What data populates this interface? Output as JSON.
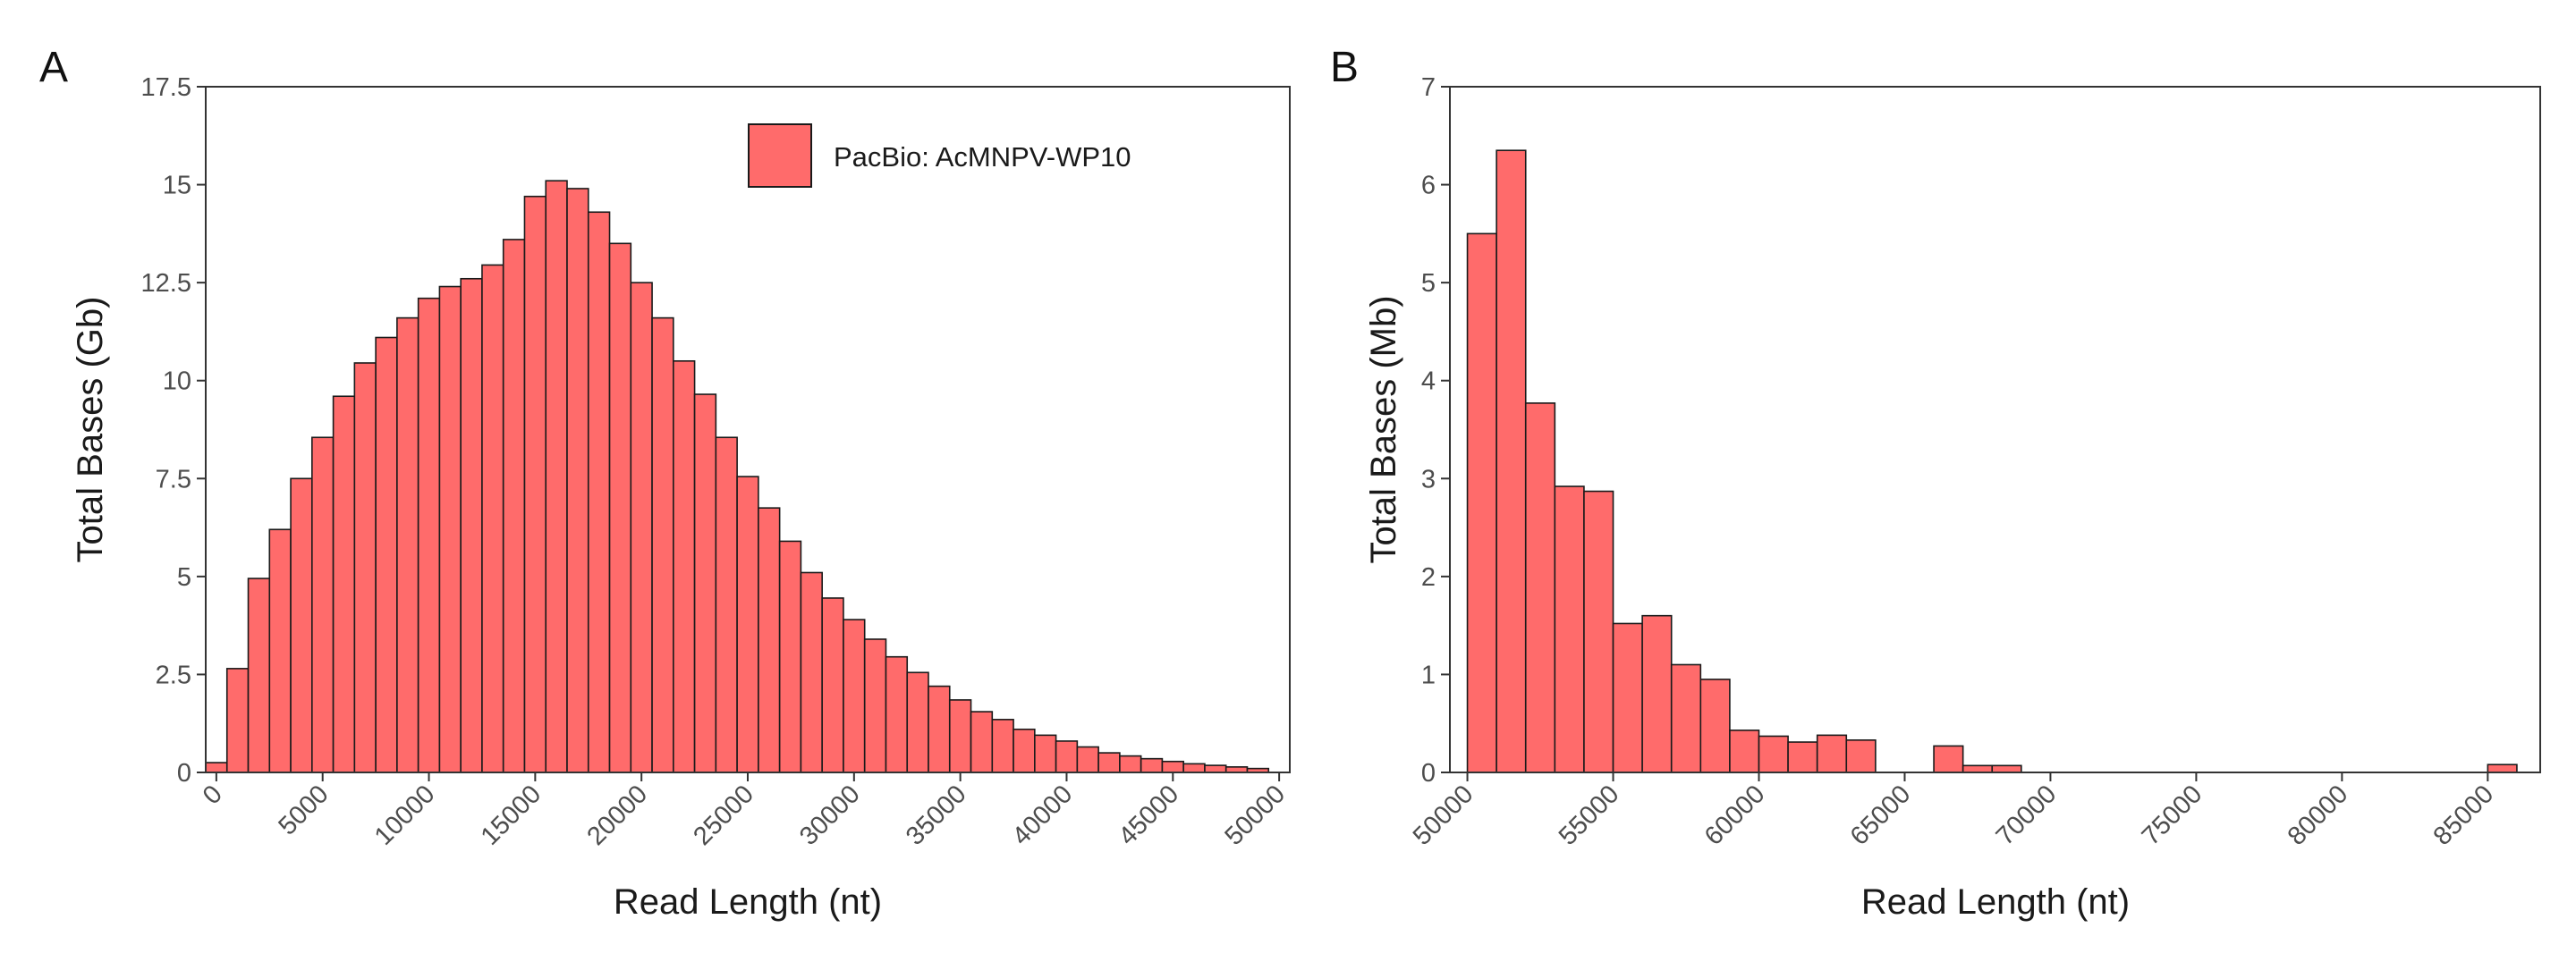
{
  "figure": {
    "panels": [
      "A",
      "B"
    ],
    "bar_fill": "#FF6B6B",
    "bar_stroke": "#1a1a1a"
  },
  "chart_data": [
    {
      "panel": "A",
      "type": "bar",
      "title": "",
      "xlabel": "Read Length (nt)",
      "ylabel": "Total Bases (Gb)",
      "legend": {
        "entries": [
          "PacBio: AcMNPV-WP10"
        ],
        "placement": "top-right"
      },
      "xlim": [
        -500,
        50500
      ],
      "ylim": [
        0,
        17.5
      ],
      "xticks": [
        0,
        5000,
        10000,
        15000,
        20000,
        25000,
        30000,
        35000,
        40000,
        45000,
        50000
      ],
      "xtick_labels": [
        "0",
        "5000",
        "10000",
        "15000",
        "20000",
        "25000",
        "30000",
        "35000",
        "40000",
        "45000",
        "50000"
      ],
      "yticks": [
        0,
        2.5,
        5,
        7.5,
        10,
        12.5,
        15,
        17.5
      ],
      "ytick_labels": [
        "0",
        "2.5",
        "5",
        "7.5",
        "10",
        "12.5",
        "15",
        "17.5"
      ],
      "grid": false,
      "bin_width": 1000,
      "x": [
        0,
        1000,
        2000,
        3000,
        4000,
        5000,
        6000,
        7000,
        8000,
        9000,
        10000,
        11000,
        12000,
        13000,
        14000,
        15000,
        16000,
        17000,
        18000,
        19000,
        20000,
        21000,
        22000,
        23000,
        24000,
        25000,
        26000,
        27000,
        28000,
        29000,
        30000,
        31000,
        32000,
        33000,
        34000,
        35000,
        36000,
        37000,
        38000,
        39000,
        40000,
        41000,
        42000,
        43000,
        44000,
        45000,
        46000,
        47000,
        48000,
        49000
      ],
      "series": [
        {
          "name": "PacBio: AcMNPV-WP10",
          "values": [
            0.25,
            2.65,
            4.95,
            6.2,
            7.5,
            8.55,
            9.6,
            10.45,
            11.1,
            11.6,
            12.1,
            12.4,
            12.6,
            12.95,
            13.6,
            14.7,
            15.1,
            14.9,
            14.3,
            13.5,
            12.5,
            11.6,
            10.5,
            9.65,
            8.55,
            7.55,
            6.75,
            5.9,
            5.1,
            4.45,
            3.9,
            3.4,
            2.95,
            2.55,
            2.2,
            1.85,
            1.55,
            1.35,
            1.1,
            0.95,
            0.8,
            0.65,
            0.5,
            0.42,
            0.35,
            0.28,
            0.22,
            0.18,
            0.14,
            0.1
          ]
        }
      ]
    },
    {
      "panel": "B",
      "type": "bar",
      "title": "",
      "xlabel": "Read Length (nt)",
      "ylabel": "Total Bases (Mb)",
      "xlim": [
        49400,
        86800
      ],
      "ylim": [
        0,
        7
      ],
      "xticks": [
        50000,
        55000,
        60000,
        65000,
        70000,
        75000,
        80000,
        85000
      ],
      "xtick_labels": [
        "50000",
        "55000",
        "60000",
        "65000",
        "70000",
        "75000",
        "80000",
        "85000"
      ],
      "yticks": [
        0,
        1,
        2,
        3,
        4,
        5,
        6,
        7
      ],
      "ytick_labels": [
        "0",
        "1",
        "2",
        "3",
        "4",
        "5",
        "6",
        "7"
      ],
      "grid": false,
      "bin_width": 1000,
      "x": [
        50500,
        51500,
        52500,
        53500,
        54500,
        55500,
        56500,
        57500,
        58500,
        59500,
        60500,
        61500,
        62500,
        63500,
        64500,
        65500,
        66500,
        67500,
        68500,
        69500,
        70500,
        71500,
        72500,
        73500,
        74500,
        75500,
        76500,
        77500,
        78500,
        79500,
        80500,
        81500,
        82500,
        83500,
        84500,
        85500
      ],
      "series": [
        {
          "name": "",
          "values": [
            5.5,
            6.35,
            3.77,
            2.92,
            2.87,
            1.52,
            1.6,
            1.1,
            0.95,
            0.43,
            0.37,
            0.31,
            0.38,
            0.33,
            0,
            0,
            0.27,
            0.07,
            0.07,
            0,
            0,
            0,
            0,
            0,
            0,
            0,
            0,
            0,
            0,
            0,
            0,
            0,
            0,
            0,
            0,
            0.08
          ]
        }
      ]
    }
  ]
}
